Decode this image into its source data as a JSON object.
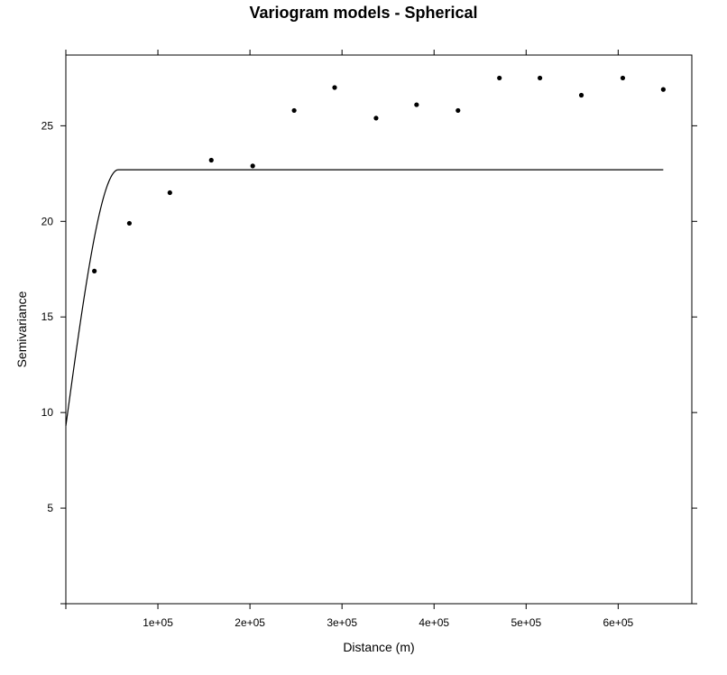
{
  "chart_data": {
    "type": "scatter",
    "title": "Variogram models - Spherical",
    "xlabel": "Distance (m)",
    "ylabel": "Semivariance",
    "xlim": [
      0,
      680000
    ],
    "ylim": [
      0,
      28.7
    ],
    "xticks": [
      100000,
      200000,
      300000,
      400000,
      500000,
      600000
    ],
    "xtick_labels": [
      "1e+05",
      "2e+05",
      "3e+05",
      "4e+05",
      "5e+05",
      "6e+05"
    ],
    "yticks": [
      5,
      10,
      15,
      20,
      25
    ],
    "ytick_labels": [
      "5",
      "10",
      "15",
      "20",
      "25"
    ],
    "grid": false,
    "points": {
      "x": [
        31000,
        69000,
        113000,
        158000,
        203000,
        248000,
        292000,
        337000,
        381000,
        426000,
        471000,
        515000,
        560000,
        605000,
        649000
      ],
      "y": [
        17.4,
        19.9,
        21.5,
        23.2,
        22.9,
        25.8,
        27.0,
        25.4,
        26.1,
        25.8,
        27.5,
        27.5,
        26.6,
        27.5,
        26.9
      ]
    },
    "model": {
      "kind": "spherical",
      "nugget": 9.3,
      "sill": 22.7,
      "range": 57000,
      "x_end": 649000
    }
  }
}
